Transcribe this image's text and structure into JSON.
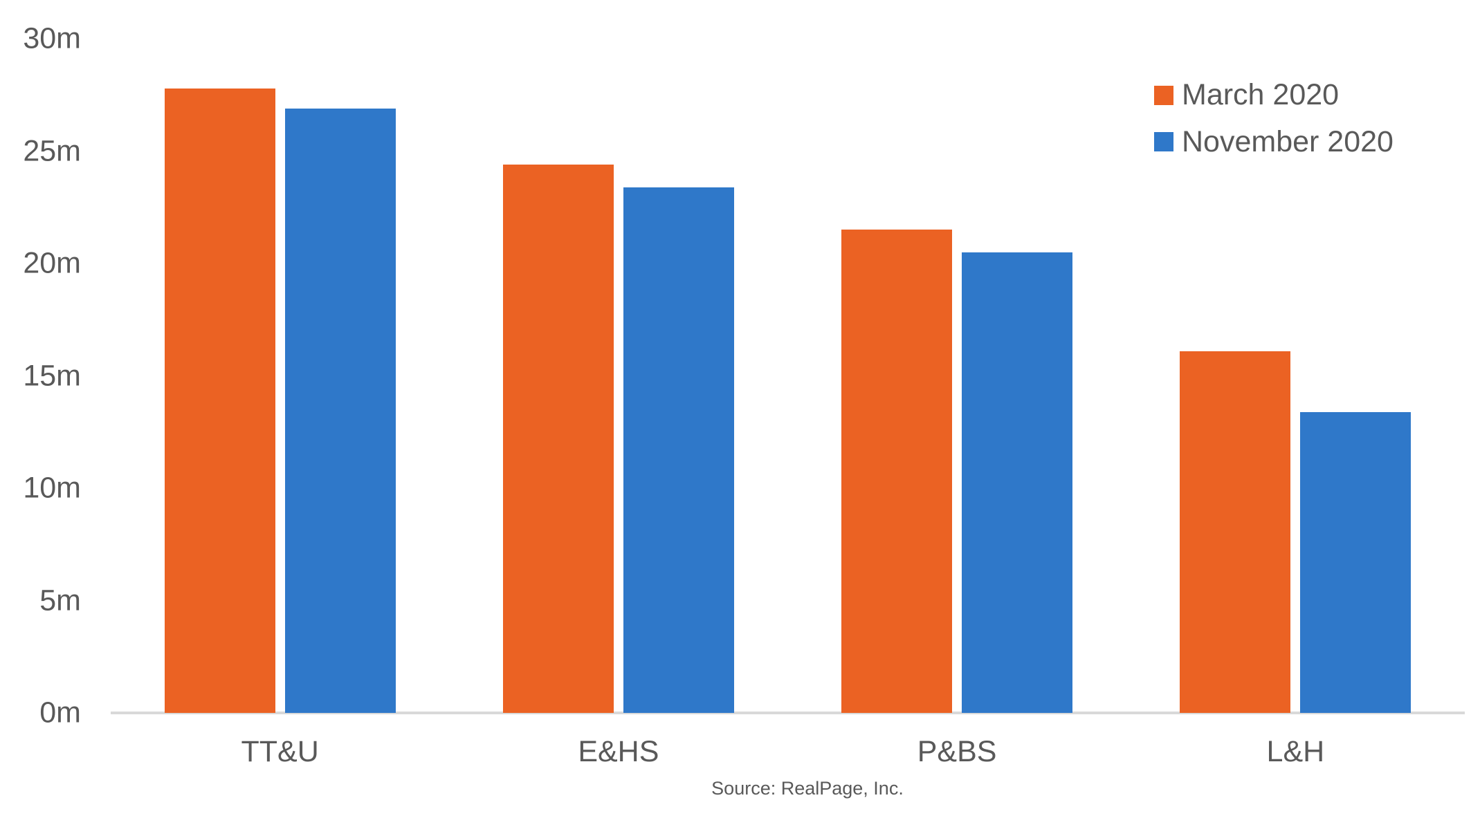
{
  "chart_data": {
    "type": "bar",
    "categories": [
      "TT&U",
      "E&HS",
      "P&BS",
      "L&H"
    ],
    "series": [
      {
        "name": "March 2020",
        "color": "#eb6223",
        "values": [
          27.8,
          24.4,
          21.5,
          16.1
        ]
      },
      {
        "name": "November 2020",
        "color": "#2f78c9",
        "values": [
          26.9,
          23.4,
          20.5,
          13.4
        ]
      }
    ],
    "xlabel": "",
    "ylabel": "",
    "ylim": [
      0,
      30
    ],
    "yticks": [
      {
        "value": 0,
        "label": "0m"
      },
      {
        "value": 5,
        "label": "5m"
      },
      {
        "value": 10,
        "label": "10m"
      },
      {
        "value": 15,
        "label": "15m"
      },
      {
        "value": 20,
        "label": "20m"
      },
      {
        "value": 25,
        "label": "25m"
      },
      {
        "value": 30,
        "label": "30m"
      }
    ],
    "grid": false,
    "legend_position": "top-right",
    "axis_line_color": "#d9d9d9",
    "text_color": "#595959",
    "source": "Source: RealPage, Inc."
  }
}
